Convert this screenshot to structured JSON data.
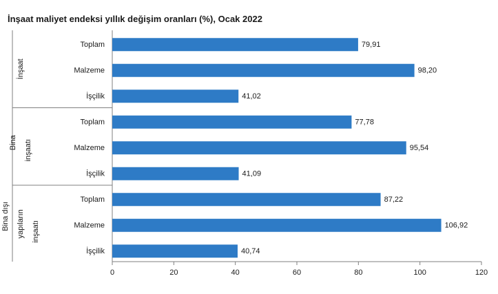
{
  "title": "İnşaat maliyet endeksi yıllık değişim oranları (%), Ocak 2022",
  "chart_data": {
    "type": "bar",
    "orientation": "horizontal",
    "title": "İnşaat maliyet endeksi yıllık değişim oranları (%), Ocak 2022",
    "groups": [
      {
        "label_lines": [
          "İnşaat"
        ],
        "categories": [
          "Toplam",
          "Malzeme",
          "İşçilik"
        ],
        "values": [
          79.91,
          98.2,
          41.02
        ],
        "value_labels": [
          "79,91",
          "98,20",
          "41,02"
        ]
      },
      {
        "label_lines": [
          "Bina",
          "inşaatı"
        ],
        "categories": [
          "Toplam",
          "Malzeme",
          "İşçilik"
        ],
        "values": [
          77.78,
          95.54,
          41.09
        ],
        "value_labels": [
          "77,78",
          "95,54",
          "41,09"
        ]
      },
      {
        "label_lines": [
          "Bina dışı",
          "yapıların",
          "inşaatı"
        ],
        "categories": [
          "Toplam",
          "Malzeme",
          "İşçilik"
        ],
        "values": [
          87.22,
          106.92,
          40.74
        ],
        "value_labels": [
          "87,22",
          "106,92",
          "40,74"
        ]
      }
    ],
    "xlim": [
      0,
      120
    ],
    "xticks": [
      0,
      20,
      40,
      60,
      80,
      100,
      120
    ],
    "grid": false,
    "bar_color": "#2E7BC6"
  }
}
